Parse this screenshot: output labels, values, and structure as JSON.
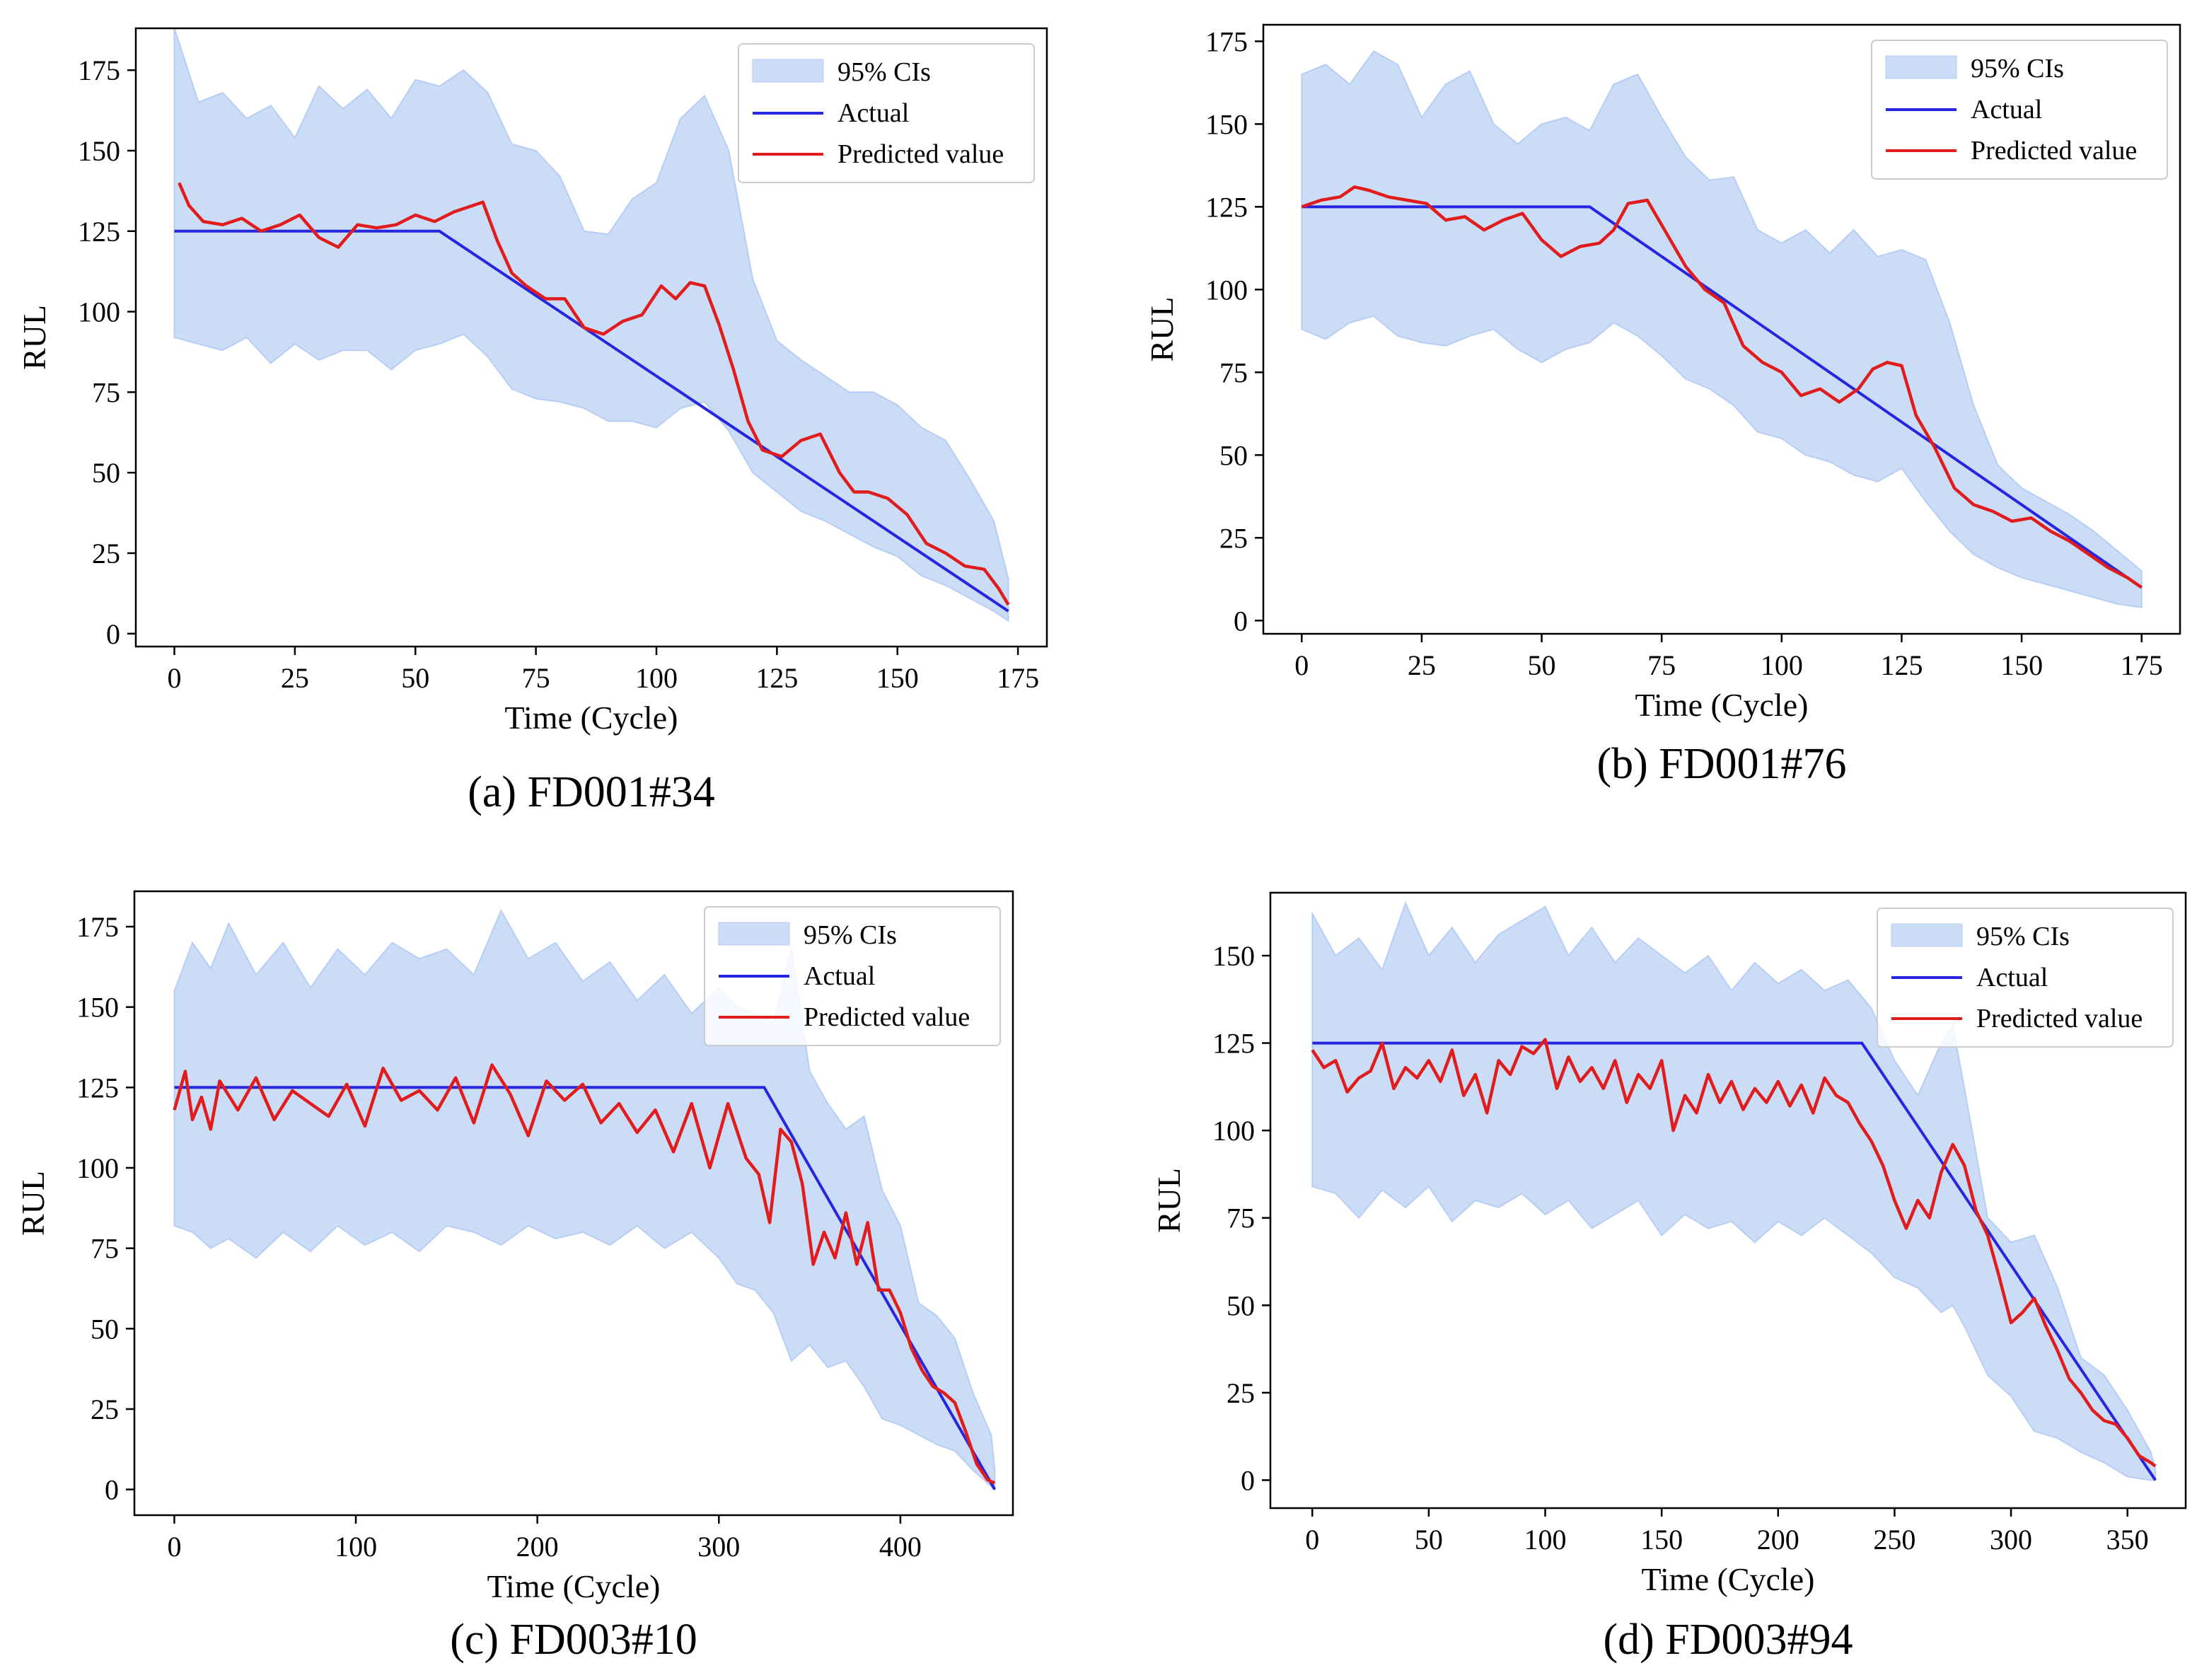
{
  "figure": {
    "captions": [
      "(a) FD001#34",
      "(b) FD001#76",
      "(c) FD003#10",
      "(d) FD003#94"
    ]
  },
  "colors": {
    "ci_fill": "#a9c4f2",
    "ci_edge": "#b7cdf5",
    "actual": "#2626e0",
    "predicted": "#e01c1c",
    "axes": "#000000",
    "legend_border": "#cccccc"
  },
  "chart_data": [
    {
      "type": "line",
      "caption": "(a) FD001#34",
      "xlabel": "Time (Cycle)",
      "ylabel": "RUL",
      "xlim": [
        -8,
        181
      ],
      "ylim": [
        -4,
        188
      ],
      "xticks": [
        0,
        25,
        50,
        75,
        100,
        125,
        150,
        175
      ],
      "yticks": [
        0,
        25,
        50,
        75,
        100,
        125,
        150,
        175
      ],
      "legend": {
        "position": "top-right",
        "entries": [
          "95% CIs",
          "Actual",
          "Predicted value"
        ]
      },
      "actual": {
        "name": "Actual",
        "x": [
          0,
          55,
          173
        ],
        "y": [
          125,
          125,
          7
        ]
      },
      "predicted": {
        "name": "Predicted value",
        "x": [
          1,
          3,
          6,
          10,
          14,
          18,
          22,
          26,
          30,
          34,
          38,
          42,
          46,
          50,
          54,
          58,
          62,
          64,
          67,
          70,
          73,
          77,
          81,
          85,
          89,
          93,
          97,
          101,
          104,
          107,
          110,
          113,
          116,
          119,
          122,
          126,
          130,
          134,
          138,
          141,
          144,
          148,
          152,
          156,
          160,
          164,
          168,
          171,
          173
        ],
        "y": [
          140,
          133,
          128,
          127,
          129,
          125,
          127,
          130,
          123,
          120,
          127,
          126,
          127,
          130,
          128,
          131,
          133,
          134,
          122,
          112,
          108,
          104,
          104,
          95,
          93,
          97,
          99,
          108,
          104,
          109,
          108,
          96,
          82,
          66,
          57,
          55,
          60,
          62,
          50,
          44,
          44,
          42,
          37,
          28,
          25,
          21,
          20,
          14,
          9
        ]
      },
      "ci": {
        "name": "95% CIs",
        "x": [
          0,
          5,
          10,
          15,
          20,
          25,
          30,
          35,
          40,
          45,
          50,
          55,
          60,
          65,
          70,
          75,
          80,
          85,
          90,
          95,
          100,
          105,
          110,
          115,
          120,
          125,
          130,
          135,
          140,
          145,
          150,
          155,
          160,
          165,
          170,
          173
        ],
        "upper": [
          188,
          165,
          168,
          160,
          164,
          154,
          170,
          163,
          169,
          160,
          172,
          170,
          175,
          168,
          152,
          150,
          142,
          125,
          124,
          135,
          140,
          160,
          167,
          150,
          110,
          91,
          85,
          80,
          75,
          75,
          71,
          64,
          60,
          48,
          35,
          17
        ],
        "lower": [
          92,
          90,
          88,
          92,
          84,
          90,
          85,
          88,
          88,
          82,
          88,
          90,
          93,
          86,
          76,
          73,
          72,
          70,
          66,
          66,
          64,
          70,
          72,
          63,
          50,
          44,
          38,
          35,
          31,
          27,
          24,
          18,
          15,
          11,
          7,
          4
        ]
      }
    },
    {
      "type": "line",
      "caption": "(b) FD001#76",
      "xlabel": "Time (Cycle)",
      "ylabel": "RUL",
      "xlim": [
        -8,
        183
      ],
      "ylim": [
        -4,
        180
      ],
      "xticks": [
        0,
        25,
        50,
        75,
        100,
        125,
        150,
        175
      ],
      "yticks": [
        0,
        25,
        50,
        75,
        100,
        125,
        150,
        175
      ],
      "legend": {
        "position": "top-right",
        "entries": [
          "95% CIs",
          "Actual",
          "Predicted value"
        ]
      },
      "actual": {
        "name": "Actual",
        "x": [
          0,
          60,
          175
        ],
        "y": [
          125,
          125,
          10
        ]
      },
      "predicted": {
        "name": "Predicted value",
        "x": [
          0,
          4,
          8,
          11,
          14,
          18,
          22,
          26,
          30,
          34,
          38,
          42,
          46,
          50,
          54,
          58,
          62,
          65,
          68,
          72,
          76,
          80,
          84,
          88,
          92,
          96,
          100,
          104,
          108,
          112,
          116,
          119,
          122,
          125,
          128,
          132,
          136,
          140,
          144,
          148,
          152,
          156,
          160,
          164,
          168,
          172,
          175
        ],
        "y": [
          125,
          127,
          128,
          131,
          130,
          128,
          127,
          126,
          121,
          122,
          118,
          121,
          123,
          115,
          110,
          113,
          114,
          118,
          126,
          127,
          117,
          107,
          100,
          96,
          83,
          78,
          75,
          68,
          70,
          66,
          70,
          76,
          78,
          77,
          62,
          52,
          40,
          35,
          33,
          30,
          31,
          27,
          24,
          20,
          16,
          13,
          10
        ]
      },
      "ci": {
        "name": "95% CIs",
        "x": [
          0,
          5,
          10,
          15,
          20,
          25,
          30,
          35,
          40,
          45,
          50,
          55,
          60,
          65,
          70,
          75,
          80,
          85,
          90,
          95,
          100,
          105,
          110,
          115,
          120,
          125,
          130,
          135,
          140,
          145,
          150,
          155,
          160,
          165,
          170,
          175
        ],
        "upper": [
          165,
          168,
          162,
          172,
          168,
          152,
          162,
          166,
          150,
          144,
          150,
          152,
          148,
          162,
          165,
          152,
          140,
          133,
          134,
          118,
          114,
          118,
          111,
          118,
          110,
          112,
          109,
          90,
          65,
          47,
          40,
          36,
          32,
          27,
          21,
          15
        ],
        "lower": [
          88,
          85,
          90,
          92,
          86,
          84,
          83,
          86,
          88,
          82,
          78,
          82,
          84,
          90,
          86,
          80,
          73,
          70,
          65,
          57,
          55,
          50,
          48,
          44,
          42,
          46,
          36,
          27,
          20,
          16,
          13,
          11,
          9,
          7,
          5,
          4
        ]
      }
    },
    {
      "type": "line",
      "caption": "(c) FD003#10",
      "xlabel": "Time (Cycle)",
      "ylabel": "RUL",
      "xlim": [
        -22,
        462
      ],
      "ylim": [
        -8,
        186
      ],
      "xticks": [
        0,
        100,
        200,
        300,
        400
      ],
      "yticks": [
        0,
        25,
        50,
        75,
        100,
        125,
        150,
        175
      ],
      "legend": {
        "position": "top-right",
        "entries": [
          "95% CIs",
          "Actual",
          "Predicted value"
        ]
      },
      "actual": {
        "name": "Actual",
        "x": [
          0,
          325,
          452
        ],
        "y": [
          125,
          125,
          0
        ]
      },
      "predicted": {
        "name": "Predicted value",
        "x": [
          0,
          6,
          10,
          15,
          20,
          25,
          35,
          45,
          55,
          65,
          75,
          85,
          95,
          105,
          115,
          125,
          135,
          145,
          155,
          165,
          175,
          185,
          195,
          205,
          215,
          225,
          235,
          245,
          255,
          265,
          275,
          285,
          295,
          305,
          315,
          322,
          328,
          334,
          340,
          346,
          352,
          358,
          364,
          370,
          376,
          382,
          388,
          394,
          400,
          406,
          412,
          418,
          424,
          430,
          436,
          442,
          448,
          452
        ],
        "y": [
          118,
          130,
          115,
          122,
          112,
          127,
          118,
          128,
          115,
          124,
          120,
          116,
          126,
          113,
          131,
          121,
          124,
          118,
          128,
          114,
          132,
          123,
          110,
          127,
          121,
          126,
          114,
          120,
          111,
          118,
          105,
          120,
          100,
          120,
          103,
          98,
          83,
          112,
          108,
          95,
          70,
          80,
          72,
          86,
          70,
          83,
          62,
          62,
          55,
          44,
          37,
          32,
          30,
          27,
          18,
          8,
          3,
          2
        ]
      },
      "ci": {
        "name": "95% CIs",
        "x": [
          0,
          10,
          20,
          30,
          45,
          60,
          75,
          90,
          105,
          120,
          135,
          150,
          165,
          180,
          195,
          210,
          225,
          240,
          255,
          270,
          285,
          300,
          310,
          320,
          330,
          340,
          350,
          360,
          370,
          380,
          390,
          400,
          410,
          420,
          430,
          440,
          450,
          452
        ],
        "upper": [
          155,
          170,
          162,
          176,
          160,
          170,
          156,
          168,
          160,
          170,
          165,
          168,
          160,
          180,
          165,
          170,
          158,
          164,
          152,
          160,
          148,
          156,
          150,
          148,
          145,
          168,
          130,
          120,
          112,
          116,
          93,
          82,
          58,
          54,
          47,
          30,
          17,
          6
        ],
        "lower": [
          82,
          80,
          75,
          78,
          72,
          80,
          74,
          82,
          76,
          80,
          74,
          82,
          80,
          76,
          82,
          78,
          80,
          76,
          82,
          75,
          80,
          72,
          64,
          62,
          55,
          40,
          45,
          38,
          40,
          32,
          22,
          20,
          17,
          14,
          12,
          6,
          1,
          0
        ]
      }
    },
    {
      "type": "line",
      "caption": "(d) FD003#94",
      "xlabel": "Time (Cycle)",
      "ylabel": "RUL",
      "xlim": [
        -18,
        375
      ],
      "ylim": [
        -8,
        168
      ],
      "xticks": [
        0,
        50,
        100,
        150,
        200,
        250,
        300,
        350
      ],
      "yticks": [
        0,
        25,
        50,
        75,
        100,
        125,
        150
      ],
      "legend": {
        "position": "top-right",
        "entries": [
          "95% CIs",
          "Actual",
          "Predicted value"
        ]
      },
      "actual": {
        "name": "Actual",
        "x": [
          0,
          236,
          362
        ],
        "y": [
          125,
          125,
          0
        ]
      },
      "predicted": {
        "name": "Predicted value",
        "x": [
          0,
          5,
          10,
          15,
          20,
          25,
          30,
          35,
          40,
          45,
          50,
          55,
          60,
          65,
          70,
          75,
          80,
          85,
          90,
          95,
          100,
          105,
          110,
          115,
          120,
          125,
          130,
          135,
          140,
          145,
          150,
          155,
          160,
          165,
          170,
          175,
          180,
          185,
          190,
          195,
          200,
          205,
          210,
          215,
          220,
          225,
          230,
          235,
          240,
          245,
          250,
          255,
          260,
          265,
          270,
          275,
          280,
          285,
          290,
          295,
          300,
          305,
          310,
          315,
          320,
          325,
          330,
          335,
          340,
          345,
          350,
          355,
          360,
          362
        ],
        "y": [
          123,
          118,
          120,
          111,
          115,
          117,
          125,
          112,
          118,
          115,
          120,
          114,
          123,
          110,
          116,
          105,
          120,
          116,
          124,
          122,
          126,
          112,
          121,
          114,
          118,
          112,
          120,
          108,
          116,
          112,
          120,
          100,
          110,
          105,
          116,
          108,
          114,
          106,
          112,
          108,
          114,
          107,
          113,
          105,
          115,
          110,
          108,
          102,
          97,
          90,
          80,
          72,
          80,
          75,
          88,
          96,
          90,
          77,
          70,
          58,
          45,
          48,
          52,
          44,
          37,
          29,
          25,
          20,
          17,
          16,
          12,
          7,
          5,
          4
        ]
      },
      "ci": {
        "name": "95% CIs",
        "x": [
          0,
          10,
          20,
          30,
          40,
          50,
          60,
          70,
          80,
          90,
          100,
          110,
          120,
          130,
          140,
          150,
          160,
          170,
          180,
          190,
          200,
          210,
          220,
          230,
          240,
          250,
          260,
          270,
          275,
          280,
          290,
          300,
          310,
          320,
          330,
          340,
          350,
          360,
          362
        ],
        "upper": [
          162,
          150,
          155,
          146,
          165,
          150,
          158,
          148,
          156,
          160,
          164,
          150,
          158,
          148,
          155,
          150,
          145,
          150,
          140,
          148,
          142,
          146,
          140,
          143,
          135,
          120,
          110,
          125,
          130,
          112,
          75,
          68,
          70,
          55,
          35,
          30,
          20,
          8,
          3
        ],
        "lower": [
          84,
          82,
          75,
          83,
          78,
          84,
          74,
          80,
          78,
          82,
          76,
          80,
          72,
          76,
          80,
          70,
          76,
          72,
          74,
          68,
          74,
          70,
          75,
          70,
          65,
          58,
          55,
          48,
          50,
          44,
          30,
          24,
          14,
          12,
          8,
          5,
          1,
          0,
          0
        ]
      }
    }
  ]
}
